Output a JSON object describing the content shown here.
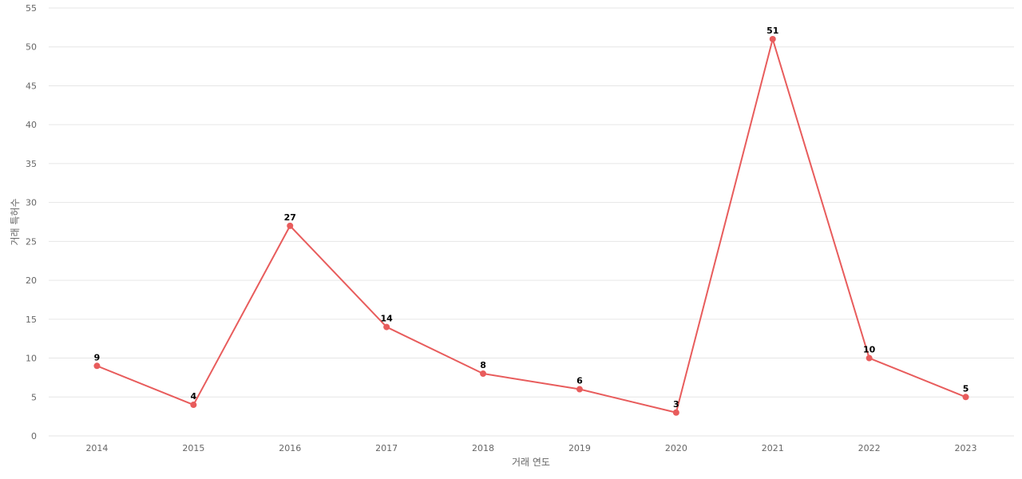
{
  "chart_data": {
    "type": "line",
    "title": "",
    "xlabel": "거래 연도",
    "ylabel": "거래 특허수",
    "categories": [
      "2014",
      "2015",
      "2016",
      "2017",
      "2018",
      "2019",
      "2020",
      "2021",
      "2022",
      "2023"
    ],
    "series": [
      {
        "values": [
          9,
          4,
          27,
          14,
          8,
          6,
          3,
          51,
          10,
          5
        ]
      }
    ],
    "ylim": [
      0,
      55
    ],
    "yticks": [
      0,
      5,
      10,
      15,
      20,
      25,
      30,
      35,
      40,
      45,
      50,
      55
    ],
    "grid": true,
    "data_labels": true,
    "colors": {
      "line": "#e85c5c",
      "point": "#e85c5c",
      "grid": "#e6e6e6"
    }
  }
}
